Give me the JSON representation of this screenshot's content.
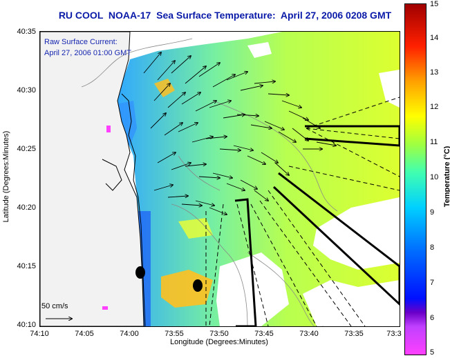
{
  "title": "RU COOL  NOAA-17  Sea Surface Temperature:  April 27, 2006 0208 GMT",
  "overlay": {
    "line1": "Raw Surface Current:",
    "line2": "April 27, 2006 01:00 GMT"
  },
  "axes": {
    "xlabel": "Longitude (Degrees:Minutes)",
    "ylabel": "Latitude (Degrees:Minutes)",
    "xticks": [
      "74:10",
      "74:05",
      "74:00",
      "73:55",
      "73:50",
      "73:45",
      "73:40",
      "73:35",
      "73:3"
    ],
    "yticks": [
      "40:35",
      "40:30",
      "40:25",
      "40:20",
      "40:15",
      "40:10"
    ]
  },
  "colorbar": {
    "label": "Temperature (°C)",
    "ticks": [
      "15",
      "14",
      "13",
      "12",
      "11",
      "10",
      "9",
      "8",
      "7",
      "6",
      "5"
    ],
    "min": 5,
    "max": 15,
    "colors": [
      "#ff40ff",
      "#6a00c8",
      "#0010ff",
      "#0070ff",
      "#00d0ff",
      "#40ffb0",
      "#a0ff40",
      "#ffff00",
      "#ffa000",
      "#ff2000",
      "#a00000"
    ]
  },
  "scale_arrow": {
    "label": "50 cm/s"
  },
  "colors": {
    "title": "#0a1aa8",
    "land": "#f2f2f2",
    "coast": "#000000"
  }
}
